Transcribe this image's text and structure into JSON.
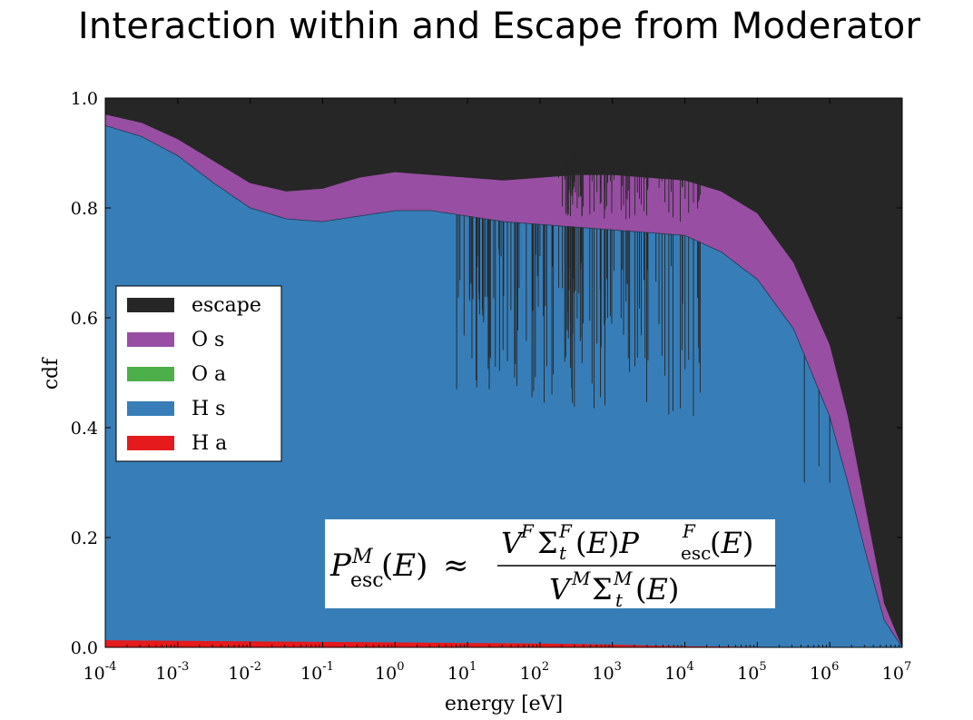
{
  "page": {
    "title": "Interaction within and Escape from Moderator"
  },
  "chart_data": {
    "type": "area",
    "title": "Interaction within and Escape from Moderator",
    "xlabel": "energy [eV]",
    "ylabel": "cdf",
    "xscale": "log",
    "xlim": [
      0.0001,
      10000000
    ],
    "ylim": [
      0.0,
      1.0
    ],
    "x_ticks": [
      {
        "base": "10",
        "exp": "-4"
      },
      {
        "base": "10",
        "exp": "-3"
      },
      {
        "base": "10",
        "exp": "-2"
      },
      {
        "base": "10",
        "exp": "-1"
      },
      {
        "base": "10",
        "exp": "0"
      },
      {
        "base": "10",
        "exp": "1"
      },
      {
        "base": "10",
        "exp": "2"
      },
      {
        "base": "10",
        "exp": "3"
      },
      {
        "base": "10",
        "exp": "4"
      },
      {
        "base": "10",
        "exp": "5"
      },
      {
        "base": "10",
        "exp": "6"
      },
      {
        "base": "10",
        "exp": "7"
      }
    ],
    "y_ticks": [
      "0.0",
      "0.2",
      "0.4",
      "0.6",
      "0.8",
      "1.0"
    ],
    "legend_position": "center-left",
    "stack_order": [
      "H a",
      "H s",
      "O a",
      "O s",
      "escape"
    ],
    "series": [
      {
        "name": "escape",
        "color": "#262626",
        "log10_energy": [
          -4,
          7
        ],
        "cdf_top": [
          1.0,
          1.0
        ]
      },
      {
        "name": "O s",
        "color": "#984ea3",
        "log10_energy": [
          -4,
          -3.5,
          -3,
          -2.5,
          -2,
          -1.5,
          -1,
          -0.5,
          0,
          0.5,
          1,
          1.5,
          2,
          2.5,
          3,
          3.5,
          4,
          4.5,
          5,
          5.5,
          6,
          6.25,
          6.5,
          6.75,
          7
        ],
        "cdf_top": [
          0.97,
          0.955,
          0.925,
          0.885,
          0.845,
          0.83,
          0.835,
          0.855,
          0.865,
          0.86,
          0.855,
          0.85,
          0.855,
          0.86,
          0.86,
          0.855,
          0.85,
          0.83,
          0.79,
          0.7,
          0.55,
          0.42,
          0.25,
          0.08,
          0.0
        ]
      },
      {
        "name": "O a",
        "color": "#4daf4a",
        "log10_energy": [
          -4,
          7
        ],
        "cdf_top": [
          0.015,
          0.002
        ]
      },
      {
        "name": "H s",
        "color": "#377eb8",
        "log10_energy": [
          -4,
          -3.5,
          -3,
          -2.5,
          -2,
          -1.5,
          -1,
          -0.5,
          0,
          0.5,
          1,
          1.5,
          2,
          2.5,
          3,
          3.5,
          4,
          4.5,
          5,
          5.5,
          6,
          6.25,
          6.5,
          6.75,
          7
        ],
        "cdf_top": [
          0.95,
          0.93,
          0.895,
          0.845,
          0.8,
          0.78,
          0.775,
          0.785,
          0.795,
          0.795,
          0.785,
          0.775,
          0.77,
          0.765,
          0.76,
          0.755,
          0.75,
          0.72,
          0.67,
          0.58,
          0.42,
          0.3,
          0.17,
          0.05,
          0.0
        ]
      },
      {
        "name": "H a",
        "color": "#e41a1c",
        "log10_energy": [
          -4,
          -2,
          0,
          2,
          3,
          4,
          5,
          7
        ],
        "cdf_top": [
          0.013,
          0.011,
          0.009,
          0.007,
          0.005,
          0.002,
          0.001,
          0.0
        ]
      }
    ],
    "annotation": "P_esc^M(E) ≈ V^F Σ_t^F(E) P_esc^F(E) / (V^M Σ_t^M(E))"
  }
}
